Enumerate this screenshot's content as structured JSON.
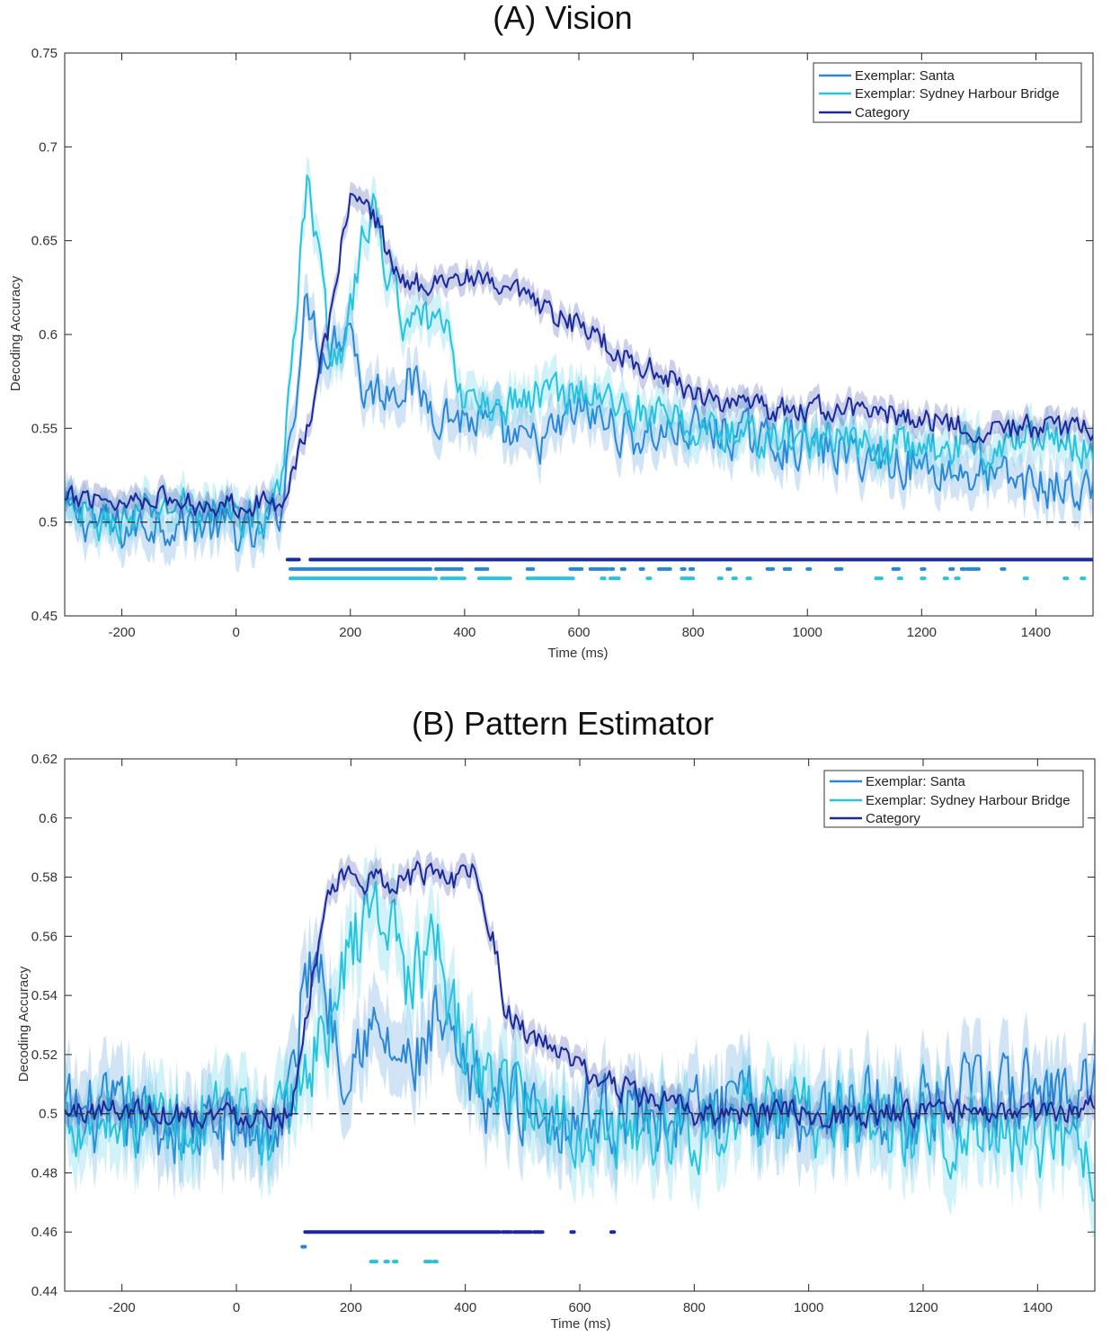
{
  "chart_data": [
    {
      "type": "line",
      "title": "(A) Vision",
      "xlabel": "Time (ms)",
      "ylabel": "Decoding Accuracy",
      "xlim": [
        -300,
        1500
      ],
      "ylim": [
        0.45,
        0.75
      ],
      "xticks": [
        -200,
        0,
        200,
        400,
        600,
        800,
        1000,
        1200,
        1400
      ],
      "yticks": [
        0.45,
        0.5,
        0.55,
        0.6,
        0.65,
        0.7,
        0.75
      ],
      "yticklabels": [
        "0.45",
        "0.5",
        "0.55",
        "0.6",
        "0.65",
        "0.7",
        "0.75"
      ],
      "chance_level": 0.5,
      "legend_position": "top-right",
      "series": [
        {
          "name": "Exemplar: Santa",
          "color": "#2a86d6",
          "x": [
            -300,
            -250,
            -200,
            -150,
            -100,
            -50,
            0,
            40,
            80,
            100,
            120,
            130,
            150,
            180,
            200,
            220,
            250,
            300,
            350,
            400,
            450,
            500,
            550,
            600,
            700,
            800,
            900,
            1000,
            1100,
            1200,
            1300,
            1400,
            1500
          ],
          "y": [
            0.505,
            0.5,
            0.495,
            0.5,
            0.5,
            0.498,
            0.495,
            0.49,
            0.51,
            0.56,
            0.61,
            0.615,
            0.59,
            0.6,
            0.61,
            0.57,
            0.57,
            0.575,
            0.56,
            0.555,
            0.55,
            0.54,
            0.545,
            0.56,
            0.545,
            0.55,
            0.545,
            0.54,
            0.535,
            0.53,
            0.525,
            0.52,
            0.515
          ],
          "noise": 0.011
        },
        {
          "name": "Exemplar: Sydney Harbour Bridge",
          "color": "#27c3de",
          "x": [
            -300,
            -250,
            -200,
            -150,
            -100,
            -50,
            0,
            40,
            80,
            100,
            115,
            125,
            140,
            160,
            180,
            200,
            220,
            240,
            260,
            300,
            350,
            380,
            400,
            450,
            500,
            550,
            600,
            700,
            800,
            900,
            1000,
            1100,
            1200,
            1300,
            1400,
            1500
          ],
          "y": [
            0.505,
            0.5,
            0.5,
            0.505,
            0.51,
            0.505,
            0.505,
            0.5,
            0.52,
            0.59,
            0.66,
            0.685,
            0.65,
            0.6,
            0.59,
            0.61,
            0.65,
            0.665,
            0.64,
            0.6,
            0.61,
            0.59,
            0.565,
            0.56,
            0.565,
            0.57,
            0.57,
            0.56,
            0.55,
            0.545,
            0.545,
            0.54,
            0.54,
            0.54,
            0.545,
            0.54
          ],
          "noise": 0.01
        },
        {
          "name": "Category",
          "color": "#1a2a9a",
          "x": [
            -300,
            -250,
            -200,
            -150,
            -100,
            -50,
            0,
            50,
            80,
            100,
            130,
            160,
            180,
            200,
            240,
            270,
            300,
            350,
            400,
            450,
            500,
            550,
            600,
            650,
            700,
            800,
            900,
            1000,
            1100,
            1200,
            1300,
            1400,
            1500
          ],
          "y": [
            0.51,
            0.515,
            0.51,
            0.515,
            0.51,
            0.51,
            0.51,
            0.51,
            0.512,
            0.53,
            0.555,
            0.6,
            0.64,
            0.675,
            0.665,
            0.64,
            0.625,
            0.63,
            0.63,
            0.625,
            0.62,
            0.61,
            0.605,
            0.595,
            0.585,
            0.57,
            0.56,
            0.56,
            0.56,
            0.555,
            0.55,
            0.55,
            0.55
          ],
          "noise": 0.006
        }
      ],
      "significance": [
        {
          "series": "Category",
          "y": 0.48,
          "intervals": [
            [
              90,
              110
            ],
            [
              130,
              1500
            ]
          ]
        },
        {
          "series": "Exemplar: Santa",
          "y": 0.475,
          "intervals": [
            [
              95,
              225
            ],
            [
              228,
              340
            ],
            [
              350,
              395
            ],
            [
              420,
              440
            ],
            [
              510,
              520
            ],
            [
              585,
              605
            ],
            [
              620,
              650
            ],
            [
              655,
              660
            ],
            [
              675,
              680
            ],
            [
              708,
              712
            ],
            [
              740,
              760
            ],
            [
              780,
              785
            ],
            [
              795,
              800
            ],
            [
              860,
              865
            ],
            [
              930,
              940
            ],
            [
              960,
              970
            ],
            [
              1000,
              1003
            ],
            [
              1050,
              1060
            ],
            [
              1150,
              1160
            ],
            [
              1200,
              1205
            ],
            [
              1250,
              1255
            ],
            [
              1270,
              1275
            ],
            [
              1280,
              1300
            ],
            [
              1340,
              1345
            ]
          ]
        },
        {
          "series": "Exemplar: Sydney Harbour Bridge",
          "y": 0.47,
          "intervals": [
            [
              95,
              350
            ],
            [
              360,
              400
            ],
            [
              425,
              480
            ],
            [
              510,
              590
            ],
            [
              640,
              645
            ],
            [
              655,
              670
            ],
            [
              720,
              725
            ],
            [
              780,
              800
            ],
            [
              845,
              850
            ],
            [
              870,
              875
            ],
            [
              895,
              900
            ],
            [
              1120,
              1130
            ],
            [
              1160,
              1163
            ],
            [
              1200,
              1205
            ],
            [
              1240,
              1243
            ],
            [
              1260,
              1265
            ],
            [
              1380,
              1383
            ],
            [
              1450,
              1453
            ],
            [
              1480,
              1483
            ]
          ]
        }
      ],
      "legend": [
        "Exemplar: Santa",
        "Exemplar: Sydney Harbour Bridge",
        "Category"
      ]
    },
    {
      "type": "line",
      "title": "(B) Pattern Estimator",
      "xlabel": "Time (ms)",
      "ylabel": "Decoding Accuracy",
      "xlim": [
        -300,
        1500
      ],
      "ylim": [
        0.44,
        0.62
      ],
      "xticks": [
        -200,
        0,
        200,
        400,
        600,
        800,
        1000,
        1200,
        1400
      ],
      "yticks": [
        0.44,
        0.46,
        0.48,
        0.5,
        0.52,
        0.54,
        0.56,
        0.58,
        0.6,
        0.62
      ],
      "yticklabels": [
        "0.44",
        "0.46",
        "0.48",
        "0.5",
        "0.52",
        "0.54",
        "0.56",
        "0.58",
        "0.6",
        "0.62"
      ],
      "chance_level": 0.5,
      "legend_position": "top-right",
      "series": [
        {
          "name": "Exemplar: Santa",
          "color": "#2a86d6",
          "x": [
            -300,
            -200,
            -100,
            0,
            80,
            100,
            120,
            140,
            160,
            180,
            200,
            220,
            250,
            300,
            330,
            350,
            400,
            450,
            500,
            550,
            600,
            700,
            800,
            900,
            1000,
            1100,
            1200,
            1300,
            1400,
            1500
          ],
          "y": [
            0.5,
            0.498,
            0.495,
            0.495,
            0.495,
            0.515,
            0.545,
            0.555,
            0.54,
            0.52,
            0.52,
            0.53,
            0.525,
            0.515,
            0.52,
            0.53,
            0.51,
            0.505,
            0.505,
            0.5,
            0.5,
            0.5,
            0.5,
            0.502,
            0.5,
            0.502,
            0.503,
            0.505,
            0.508,
            0.51
          ],
          "noise": 0.012
        },
        {
          "name": "Exemplar: Sydney Harbour Bridge",
          "color": "#27c3de",
          "x": [
            -300,
            -200,
            -100,
            0,
            80,
            100,
            120,
            150,
            180,
            200,
            220,
            250,
            280,
            300,
            330,
            350,
            370,
            400,
            450,
            500,
            550,
            600,
            700,
            800,
            900,
            1000,
            1100,
            1200,
            1300,
            1400,
            1500
          ],
          "y": [
            0.5,
            0.5,
            0.498,
            0.495,
            0.495,
            0.505,
            0.515,
            0.525,
            0.54,
            0.555,
            0.565,
            0.57,
            0.56,
            0.545,
            0.55,
            0.555,
            0.54,
            0.52,
            0.51,
            0.505,
            0.5,
            0.495,
            0.495,
            0.495,
            0.498,
            0.498,
            0.497,
            0.495,
            0.495,
            0.49,
            0.485
          ],
          "noise": 0.012
        },
        {
          "name": "Category",
          "color": "#1a2a9a",
          "x": [
            -300,
            -200,
            -100,
            0,
            50,
            80,
            100,
            120,
            140,
            160,
            180,
            200,
            250,
            300,
            350,
            380,
            400,
            420,
            450,
            470,
            500,
            550,
            600,
            650,
            700,
            750,
            800,
            900,
            1000,
            1100,
            1200,
            1300,
            1400,
            1500
          ],
          "y": [
            0.5,
            0.502,
            0.5,
            0.5,
            0.5,
            0.5,
            0.505,
            0.53,
            0.555,
            0.57,
            0.578,
            0.58,
            0.578,
            0.58,
            0.582,
            0.58,
            0.585,
            0.58,
            0.56,
            0.535,
            0.528,
            0.522,
            0.515,
            0.51,
            0.507,
            0.503,
            0.5,
            0.5,
            0.5,
            0.5,
            0.5,
            0.5,
            0.5,
            0.502
          ],
          "noise": 0.004
        }
      ],
      "significance": [
        {
          "series": "Category",
          "y": 0.46,
          "intervals": [
            [
              120,
              460
            ],
            [
              465,
              480
            ],
            [
              485,
              515
            ],
            [
              520,
              535
            ],
            [
              585,
              590
            ],
            [
              655,
              660
            ]
          ]
        },
        {
          "series": "Exemplar: Santa",
          "y": 0.455,
          "intervals": [
            [
              115,
              120
            ]
          ]
        },
        {
          "series": "Exemplar: Sydney Harbour Bridge",
          "y": 0.45,
          "intervals": [
            [
              235,
              245
            ],
            [
              260,
              265
            ],
            [
              275,
              280
            ],
            [
              330,
              340
            ],
            [
              345,
              350
            ]
          ]
        }
      ],
      "legend": [
        "Exemplar: Santa",
        "Exemplar: Sydney Harbour Bridge",
        "Category"
      ]
    }
  ]
}
